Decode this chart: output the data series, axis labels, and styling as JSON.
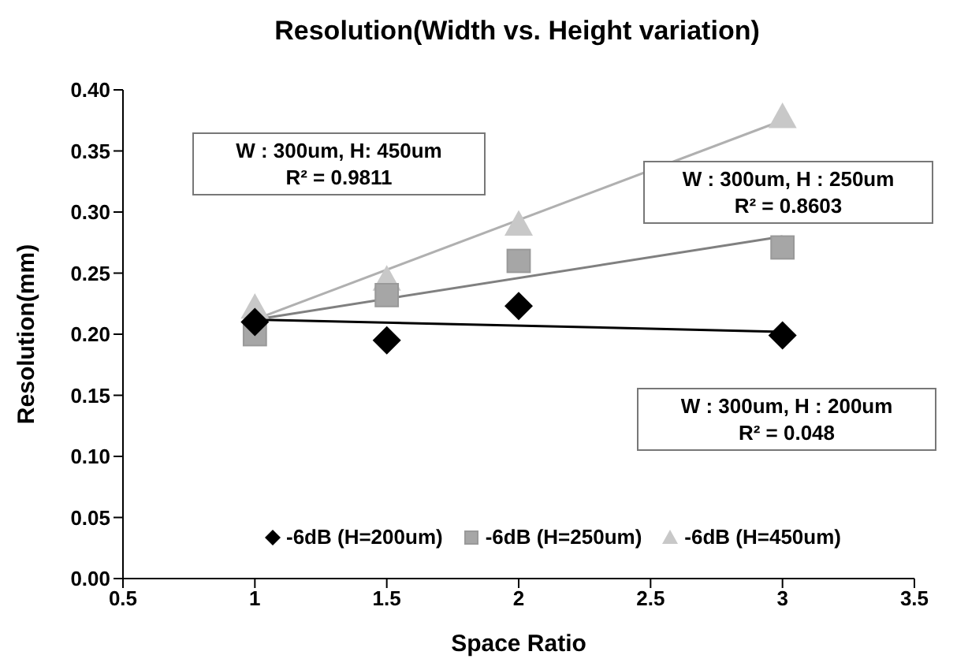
{
  "chart_data": {
    "type": "scatter",
    "title": "Resolution(Width vs. Height variation)",
    "xlabel": "Space Ratio",
    "ylabel": "Resolution(mm)",
    "xlim": [
      0.5,
      3.5
    ],
    "xticks": [
      0.5,
      1,
      1.5,
      2,
      2.5,
      3,
      3.5
    ],
    "ylim": [
      0,
      0.4
    ],
    "yticks": [
      {
        "value": 0,
        "label": "0.00"
      },
      {
        "value": 0.05,
        "label": "0.05"
      },
      {
        "value": 0.1,
        "label": "0.10"
      },
      {
        "value": 0.15,
        "label": "0.15"
      },
      {
        "value": 0.2,
        "label": "0.20"
      },
      {
        "value": 0.25,
        "label": "0.25"
      },
      {
        "value": 0.3,
        "label": "0.30"
      },
      {
        "value": 0.35,
        "label": "0.35"
      },
      {
        "value": 0.4,
        "label": "0.40"
      }
    ],
    "grid": false,
    "legend": "bottom",
    "series": [
      {
        "name": "-6dB (H=200um)",
        "color": "#000000",
        "marker": "diamond",
        "x": [
          1,
          1.5,
          2,
          3
        ],
        "values": [
          0.21,
          0.195,
          0.223,
          0.199
        ]
      },
      {
        "name": "-6dB (H=250um)",
        "color": "#a6a6a6",
        "marker": "square",
        "x": [
          1,
          1.5,
          2,
          3
        ],
        "values": [
          0.2,
          0.232,
          0.26,
          0.271
        ]
      },
      {
        "name": "-6dB (H=450um)",
        "color": "#c8c8c8",
        "marker": "triangle",
        "x": [
          1,
          1.5,
          2,
          3
        ],
        "values": [
          0.222,
          0.245,
          0.29,
          0.378
        ]
      },
      {
        "type": "line",
        "color": "#000000",
        "x": [
          1,
          3
        ],
        "values": [
          0.212,
          0.202
        ]
      },
      {
        "type": "line",
        "color": "#808080",
        "x": [
          1,
          3
        ],
        "values": [
          0.212,
          0.28
        ]
      },
      {
        "type": "line",
        "color": "#b0b0b0",
        "x": [
          1,
          3
        ],
        "values": [
          0.212,
          0.375
        ]
      }
    ],
    "annotations": [
      "W : 300um, H: 450um\nR² = 0.9811",
      "W : 300um, H : 250um\nR² = 0.8603",
      "W : 300um, H : 200um\nR² = 0.048"
    ]
  }
}
